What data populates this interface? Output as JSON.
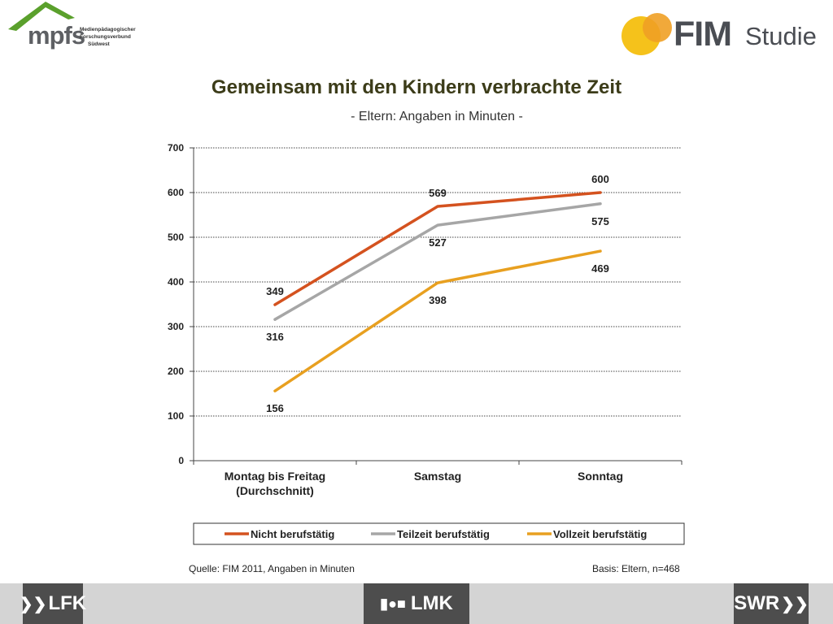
{
  "header": {
    "mpfs_logo_text": "mpfs",
    "mpfs_subtitle_lines": [
      "Medienpädagogischer",
      "Forschungsverbund",
      "Südwest"
    ],
    "fim_logo_text": "FIM",
    "fim_logo_suffix": "Studie"
  },
  "footer": {
    "source": "Quelle: FIM 2011,  Angaben in Minuten",
    "basis": "Basis: Eltern, n=468",
    "logos": [
      "LFK",
      "LMK",
      "SWR"
    ]
  },
  "chart_data": {
    "type": "line",
    "title": "Gemeinsam mit den Kindern verbrachte Zeit",
    "subtitle": "- Eltern: Angaben in Minuten -",
    "categories": [
      [
        "Montag bis Freitag",
        "(Durchschnitt)"
      ],
      [
        "Samstag"
      ],
      [
        "Sonntag"
      ]
    ],
    "ylim": [
      0,
      700
    ],
    "yticks": [
      0,
      100,
      200,
      300,
      400,
      500,
      600,
      700
    ],
    "grid": true,
    "legend_position": "bottom",
    "series": [
      {
        "name": "Nicht berufstätig",
        "color": "#d4521f",
        "values": [
          349,
          569,
          600
        ],
        "labels": [
          "349",
          "569",
          "600"
        ],
        "label_pos": [
          "above",
          "above",
          "above"
        ]
      },
      {
        "name": "Teilzeit berufstätig",
        "color": "#a6a6a6",
        "values": [
          316,
          527,
          575
        ],
        "labels": [
          "316",
          "527",
          "575"
        ],
        "label_pos": [
          "below",
          "below",
          "below"
        ]
      },
      {
        "name": "Vollzeit berufstätig",
        "color": "#e8a020",
        "values": [
          156,
          398,
          469
        ],
        "labels": [
          "156",
          "398",
          "469"
        ],
        "label_pos": [
          "below",
          "below",
          "below"
        ]
      }
    ]
  }
}
